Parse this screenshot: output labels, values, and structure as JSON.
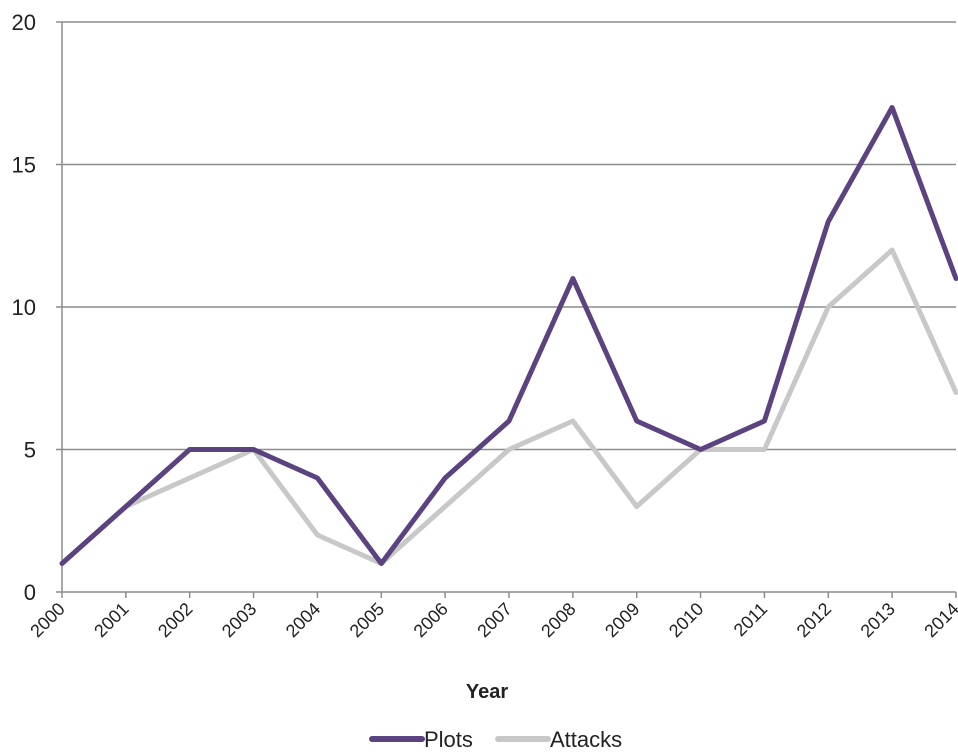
{
  "chart_data": {
    "type": "line",
    "x": [
      "2000",
      "2001",
      "2002",
      "2003",
      "2004",
      "2005",
      "2006",
      "2007",
      "2008",
      "2009",
      "2010",
      "2011",
      "2012",
      "2013",
      "2014"
    ],
    "series": [
      {
        "name": "Plots",
        "color": "#5b4380",
        "values": [
          1,
          3,
          5,
          5,
          4,
          1,
          4,
          6,
          11,
          6,
          5,
          6,
          13,
          17,
          11
        ]
      },
      {
        "name": "Attacks",
        "color": "#c8c8c8",
        "values": [
          1,
          3,
          4,
          5,
          2,
          1,
          3,
          5,
          6,
          3,
          5,
          5,
          10,
          12,
          7
        ]
      }
    ],
    "title": "",
    "xlabel": "Year",
    "ylabel": "",
    "ylim": [
      0,
      20
    ],
    "yticks": [
      0,
      5,
      10,
      15,
      20
    ],
    "grid": "horizontal",
    "legend_position": "bottom"
  }
}
